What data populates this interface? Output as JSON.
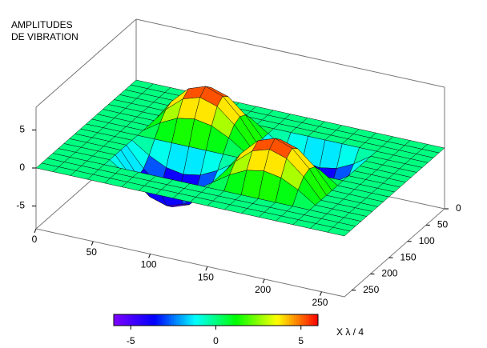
{
  "chart_data": {
    "type": "surface",
    "title": [
      "AMPLITUDES",
      "DE VIBRATION"
    ],
    "colorbar_label": "X  λ / 4",
    "x": [
      0,
      15,
      30,
      45,
      60,
      75,
      90,
      105,
      120,
      135,
      150,
      165,
      180,
      195,
      210,
      225,
      240,
      255,
      270
    ],
    "y": [
      0,
      15,
      30,
      45,
      60,
      75,
      90,
      105,
      120,
      135,
      150,
      165,
      180,
      195,
      210,
      225,
      240,
      255,
      270
    ],
    "z": [
      [
        0,
        0,
        0,
        0,
        0,
        0,
        0,
        0,
        0,
        0,
        0,
        0,
        0,
        0,
        0,
        0,
        0,
        0,
        0
      ],
      [
        0,
        0,
        0,
        0,
        0,
        0,
        0,
        0,
        0,
        0,
        0,
        0,
        0,
        0,
        0,
        0,
        0,
        0,
        0
      ],
      [
        0,
        0,
        0,
        0,
        0,
        0,
        0,
        0,
        0,
        0,
        0,
        0,
        0,
        0,
        0,
        0,
        0,
        0,
        0
      ],
      [
        0,
        0,
        0,
        0,
        0,
        0,
        0,
        0,
        0,
        0,
        0,
        0,
        0,
        0,
        0,
        0,
        0,
        0,
        0
      ],
      [
        0,
        0,
        0,
        0,
        1.5,
        2.6,
        3,
        2.6,
        1.5,
        0,
        -1.5,
        -2.6,
        -3,
        -2.6,
        -1.5,
        0,
        0,
        0,
        0
      ],
      [
        0,
        0,
        0,
        0,
        2.6,
        4.5,
        5.2,
        4.5,
        2.6,
        0,
        -2.6,
        -4.5,
        -5.2,
        -4.5,
        -2.6,
        0,
        0,
        0,
        0
      ],
      [
        0,
        0,
        0,
        0,
        3,
        5.2,
        6,
        5.2,
        3,
        0,
        -3,
        -5.2,
        -6,
        -5.2,
        -3,
        0,
        0,
        0,
        0
      ],
      [
        0,
        0,
        0,
        0,
        2.6,
        4.5,
        5.2,
        4.5,
        2.6,
        0,
        -2.6,
        -4.5,
        -5.2,
        -4.5,
        -2.6,
        0,
        0,
        0,
        0
      ],
      [
        0,
        0,
        0,
        0,
        1.5,
        2.6,
        3,
        2.6,
        1.5,
        0,
        -1.5,
        -2.6,
        -3,
        -2.6,
        -1.5,
        0,
        0,
        0,
        0
      ],
      [
        0,
        0,
        0,
        0,
        0,
        0,
        0,
        0,
        0,
        0,
        0,
        0,
        0,
        0,
        0,
        0,
        0,
        0,
        0
      ],
      [
        0,
        0,
        0,
        0,
        -1.5,
        -2.6,
        -3,
        -2.6,
        -1.5,
        0,
        1.5,
        2.6,
        3,
        2.6,
        1.5,
        0,
        0,
        0,
        0
      ],
      [
        0,
        0,
        0,
        0,
        -2.6,
        -4.5,
        -5.2,
        -4.5,
        -2.6,
        0,
        2.6,
        4.5,
        5.2,
        4.5,
        2.6,
        0,
        0,
        0,
        0
      ],
      [
        0,
        0,
        0,
        0,
        -3,
        -5.2,
        -6,
        -5.2,
        -3,
        0,
        3,
        5.2,
        6,
        5.2,
        3,
        0,
        0,
        0,
        0
      ],
      [
        0,
        0,
        0,
        0,
        -2.6,
        -4.5,
        -5.2,
        -4.5,
        -2.6,
        0,
        2.6,
        4.5,
        5.2,
        4.5,
        2.6,
        0,
        0,
        0,
        0
      ],
      [
        0,
        0,
        0,
        0,
        -1.5,
        -2.6,
        -3,
        -2.6,
        -1.5,
        0,
        1.5,
        2.6,
        3,
        2.6,
        1.5,
        0,
        0,
        0,
        0
      ],
      [
        0,
        0,
        0,
        0,
        0,
        0,
        0,
        0,
        0,
        0,
        0,
        0,
        0,
        0,
        0,
        0,
        0,
        0,
        0
      ],
      [
        0,
        0,
        0,
        0,
        0,
        0,
        0,
        0,
        0,
        0,
        0,
        0,
        0,
        0,
        0,
        0,
        0,
        0,
        0
      ],
      [
        0,
        0,
        0,
        0,
        0,
        0,
        0,
        0,
        0,
        0,
        0,
        0,
        0,
        0,
        0,
        0,
        0,
        0,
        0
      ],
      [
        0,
        0,
        0,
        0,
        0,
        0,
        0,
        0,
        0,
        0,
        0,
        0,
        0,
        0,
        0,
        0,
        0,
        0,
        0
      ]
    ],
    "xlim": [
      0,
      270
    ],
    "ylim": [
      0,
      270
    ],
    "zlim": [
      -8,
      8
    ],
    "xticks": [
      0,
      50,
      100,
      150,
      200,
      250
    ],
    "yticks": [
      0,
      50,
      100,
      150,
      200,
      250
    ],
    "zticks": [
      -5,
      0,
      5
    ],
    "clim": [
      -6,
      6
    ],
    "cticks": [
      -5,
      0,
      5
    ],
    "colormap": [
      "#7f00ff",
      "#0000ff",
      "#00ffff",
      "#00ff00",
      "#ffff00",
      "#ff0000"
    ]
  }
}
